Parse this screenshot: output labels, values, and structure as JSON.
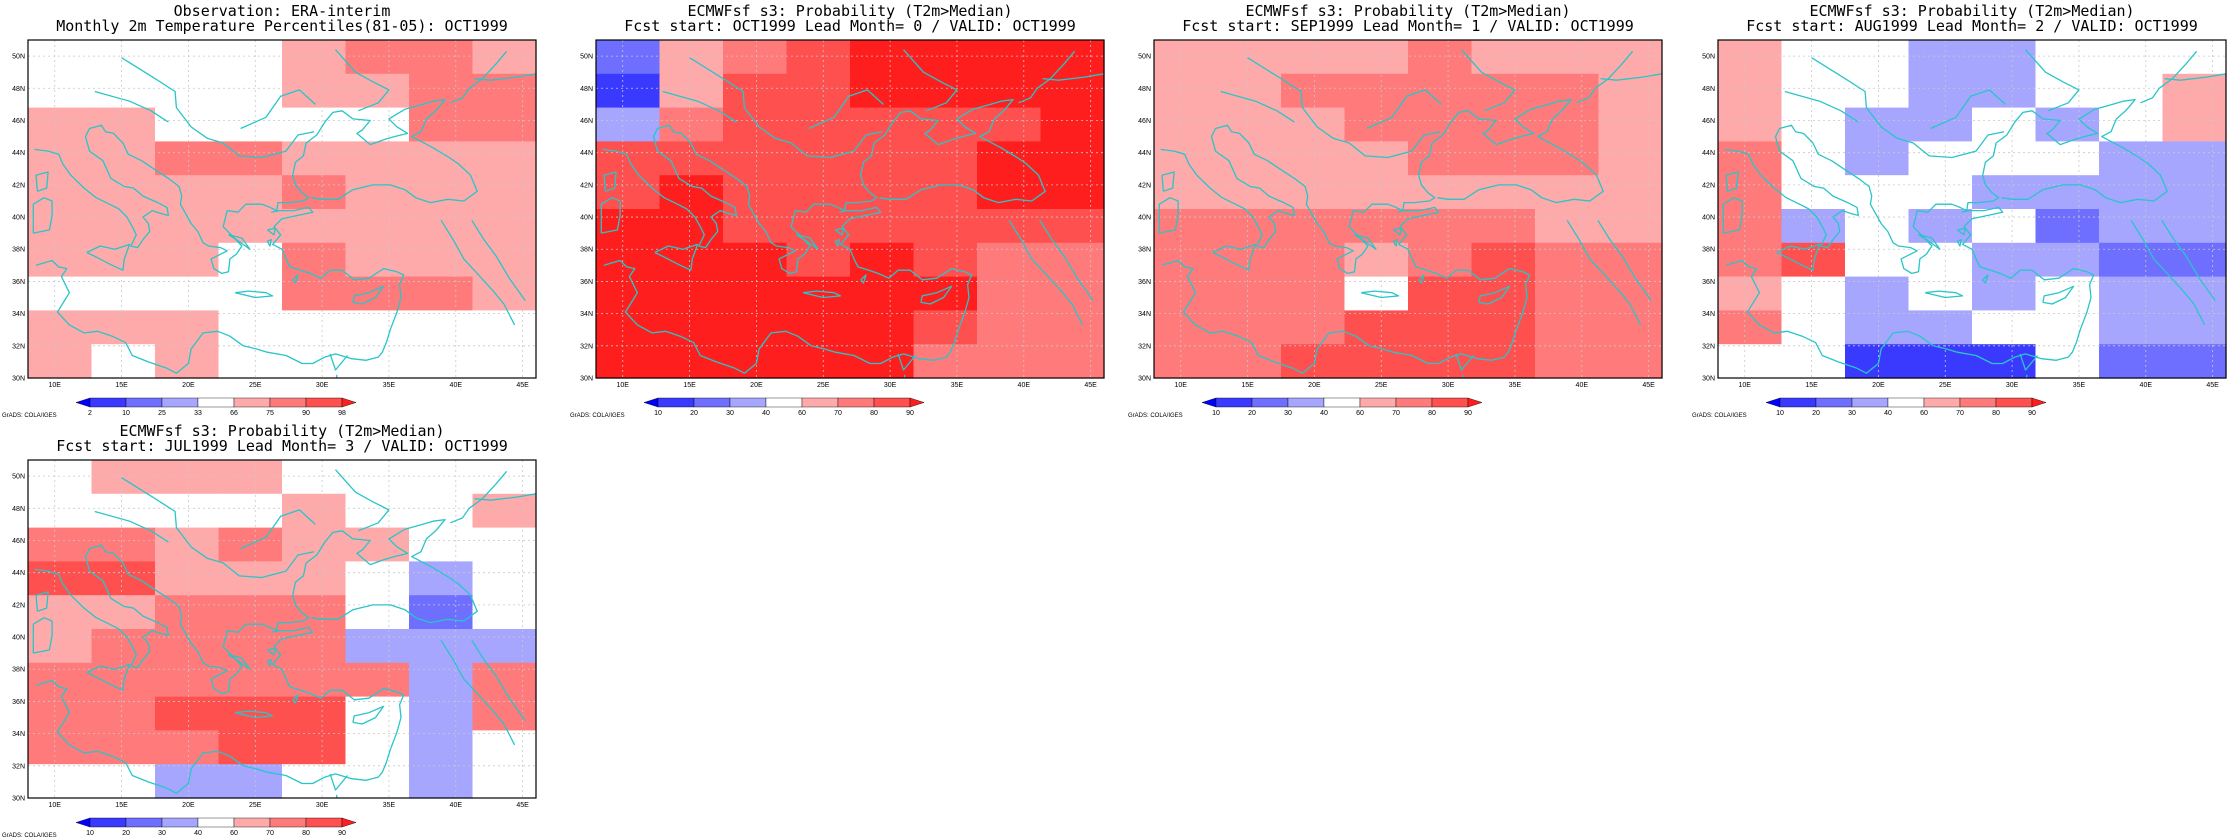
{
  "colors": {
    "scale": [
      "#0000ff",
      "#3a3aff",
      "#6e6eff",
      "#a6a6ff",
      "#ffffff",
      "#ffaaaa",
      "#ff7b7b",
      "#ff5050",
      "#ff1e1e"
    ],
    "coast": "#29c5c8",
    "grid": "#c8c8c8",
    "frame": "#000000"
  },
  "credit": "GrADS: COLA/IGES",
  "axes": {
    "lon_labels": [
      "10E",
      "15E",
      "20E",
      "25E",
      "30E",
      "35E",
      "40E",
      "45E"
    ],
    "lat_labels": [
      "30N",
      "32N",
      "34N",
      "36N",
      "38N",
      "40N",
      "42N",
      "44N",
      "46N",
      "48N",
      "50N"
    ]
  },
  "panels": [
    {
      "title1": "Observation: ERA-interim",
      "title2": "Monthly 2m Temperature Percentiles(81-05): OCT1999",
      "colorbar_labels": [
        "2",
        "10",
        "25",
        "33",
        "66",
        "75",
        "90",
        "98"
      ],
      "grid": [
        "44445665",
        "44445566",
        "55444466",
        "55665555",
        "55556555",
        "55555555",
        "55546555",
        "44446665",
        "55544444",
        "54544444"
      ]
    },
    {
      "title1": "ECMWFsf s3: Probability (T2m>Median)",
      "title2": "Fcst start: OCT1999   Lead Month= 0 / VALID: OCT1999",
      "colorbar_labels": [
        "10",
        "20",
        "30",
        "40",
        "60",
        "70",
        "80",
        "90"
      ],
      "grid": [
        "25678888",
        "15778888",
        "36777778",
        "77777788",
        "78777788",
        "88777777",
        "88878766",
        "88888866",
        "88888766",
        "88888666"
      ]
    },
    {
      "title1": "ECMWFsf s3: Probability (T2m>Median)",
      "title2": "Fcst start: SEP1999   Lead Month= 1 / VALID: OCT1999",
      "colorbar_labels": [
        "10",
        "20",
        "30",
        "40",
        "60",
        "70",
        "80",
        "90"
      ],
      "grid": [
        "55556555",
        "55666665",
        "55566665",
        "55556665",
        "55555555",
        "66666655",
        "66656766",
        "66647766",
        "66677766",
        "66777766"
      ]
    },
    {
      "title1": "ECMWFsf s3: Probability (T2m>Median)",
      "title2": "Fcst start: AUG1999   Lead Month= 2 / VALID: OCT1999",
      "colorbar_labels": [
        "10",
        "20",
        "30",
        "40",
        "60",
        "70",
        "80",
        "90"
      ],
      "grid": [
        "54433444",
        "54433445",
        "54334345",
        "64344433",
        "64443333",
        "63434233",
        "67443322",
        "54343433",
        "64334433",
        "44111422"
      ]
    },
    {
      "title1": "ECMWFsf s3: Probability (T2m>Median)",
      "title2": "Fcst start: JUL1999   Lead Month= 3 / VALID: OCT1999",
      "colorbar_labels": [
        "10",
        "20",
        "30",
        "40",
        "60",
        "70",
        "80",
        "90"
      ],
      "grid": [
        "45554444",
        "44445445",
        "66565544",
        "77555434",
        "55666424",
        "56666333",
        "66666636",
        "66777436",
        "66677434",
        "44334434"
      ]
    }
  ]
}
